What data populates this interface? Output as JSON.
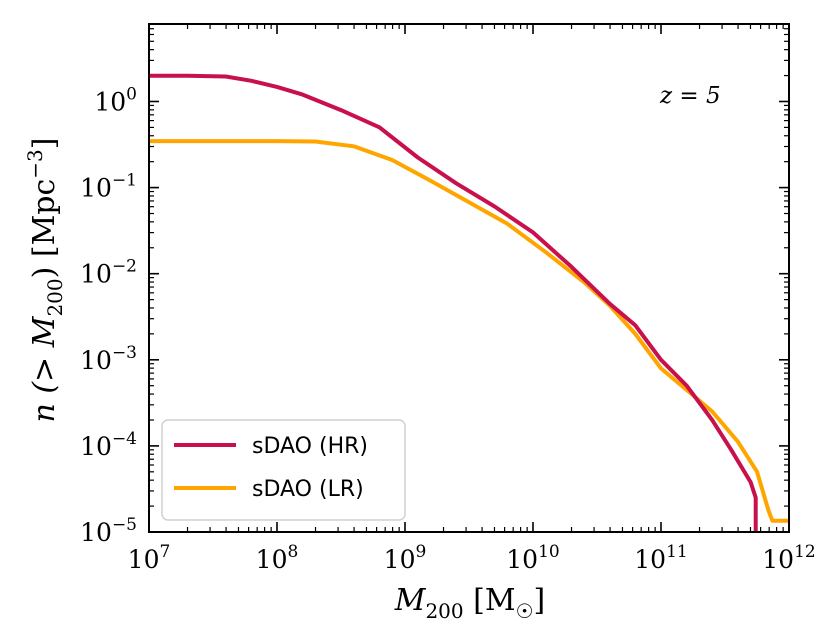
{
  "chart_data": {
    "type": "line",
    "annotation": "z = 5",
    "xlabel": {
      "main": "M",
      "sub": "200",
      "unit_open": " [M",
      "unit_sub": "☉",
      "unit_close": "]"
    },
    "ylabel": {
      "pre": "n (> M",
      "sub": "200",
      "mid": ")  [Mpc",
      "sup": "−3",
      "post": "]"
    },
    "xscale": "log",
    "yscale": "log",
    "xlim_log10": [
      7,
      12
    ],
    "ylim_log10": [
      -5,
      0.9
    ],
    "xticks": [
      {
        "base": "10",
        "exp": "7",
        "log10": 7
      },
      {
        "base": "10",
        "exp": "8",
        "log10": 8
      },
      {
        "base": "10",
        "exp": "9",
        "log10": 9
      },
      {
        "base": "10",
        "exp": "10",
        "log10": 10
      },
      {
        "base": "10",
        "exp": "11",
        "log10": 11
      },
      {
        "base": "10",
        "exp": "12",
        "log10": 12
      }
    ],
    "yticks": [
      {
        "base": "10",
        "exp": "0",
        "log10": 0
      },
      {
        "base": "10",
        "exp": "−1",
        "log10": -1
      },
      {
        "base": "10",
        "exp": "−2",
        "log10": -2
      },
      {
        "base": "10",
        "exp": "−3",
        "log10": -3
      },
      {
        "base": "10",
        "exp": "−4",
        "log10": -4
      },
      {
        "base": "10",
        "exp": "−5",
        "log10": -5
      }
    ],
    "legend_position": "lower-left",
    "series": [
      {
        "name": "sDAO (HR)",
        "color": "#c8104d",
        "points_log10": [
          [
            7.0,
            0.3
          ],
          [
            7.3,
            0.3
          ],
          [
            7.6,
            0.29
          ],
          [
            7.8,
            0.24
          ],
          [
            8.0,
            0.17
          ],
          [
            8.2,
            0.08
          ],
          [
            8.5,
            -0.1
          ],
          [
            8.8,
            -0.3
          ],
          [
            9.1,
            -0.65
          ],
          [
            9.4,
            -0.95
          ],
          [
            9.7,
            -1.22
          ],
          [
            10.0,
            -1.52
          ],
          [
            10.3,
            -1.92
          ],
          [
            10.6,
            -2.35
          ],
          [
            10.8,
            -2.6
          ],
          [
            11.0,
            -3.0
          ],
          [
            11.2,
            -3.3
          ],
          [
            11.4,
            -3.7
          ],
          [
            11.55,
            -4.05
          ],
          [
            11.7,
            -4.42
          ],
          [
            11.74,
            -4.6
          ],
          [
            11.74,
            -5.0
          ]
        ]
      },
      {
        "name": "sDAO (LR)",
        "color": "#ffa500",
        "points_log10": [
          [
            7.0,
            -0.46
          ],
          [
            7.5,
            -0.46
          ],
          [
            8.0,
            -0.46
          ],
          [
            8.3,
            -0.465
          ],
          [
            8.6,
            -0.52
          ],
          [
            8.9,
            -0.68
          ],
          [
            9.2,
            -0.92
          ],
          [
            9.5,
            -1.17
          ],
          [
            9.8,
            -1.42
          ],
          [
            10.1,
            -1.75
          ],
          [
            10.4,
            -2.1
          ],
          [
            10.6,
            -2.37
          ],
          [
            10.8,
            -2.7
          ],
          [
            11.0,
            -3.1
          ],
          [
            11.2,
            -3.35
          ],
          [
            11.4,
            -3.6
          ],
          [
            11.6,
            -3.95
          ],
          [
            11.75,
            -4.3
          ],
          [
            11.84,
            -4.75
          ],
          [
            11.87,
            -4.87
          ],
          [
            11.93,
            -4.87
          ],
          [
            12.0,
            -4.87
          ]
        ]
      }
    ]
  }
}
